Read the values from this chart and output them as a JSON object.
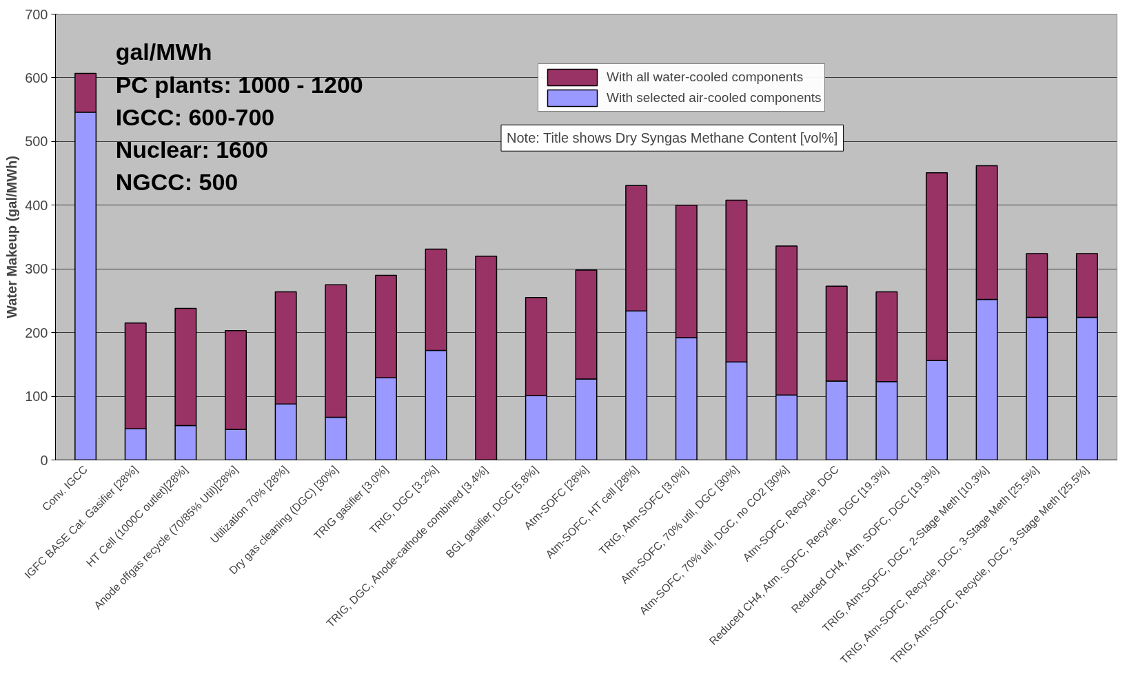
{
  "chart_data": {
    "type": "bar",
    "stacked": true,
    "ylabel": "Water Makeup (gal/MWh)",
    "categories": [
      "Conv. IGCC",
      "IGFC BASE Cat. Gasifier [28%]",
      "HT Cell (1000C outlet)[28%]",
      "Anode offgas recycle (70/85% Util)[28%]",
      "Utilization 70% [28%]",
      "Dry gas cleaning (DGC) [30%]",
      "TRIG gasifier [3.0%]",
      "TRIG, DGC [3.2%]",
      "TRIG, DGC, Anode-cathode combined [3.4%]",
      "BGL gasifier, DGC [5.8%]",
      "Atm-SOFC [28%]",
      "Atm-SOFC, HT cell [28%]",
      "TRIG, Atm-SOFC [3.0%]",
      "Atm-SOFC, 70% util, DGC [30%]",
      "Atm-SOFC, 70% util, DGC, no CO2 [30%]",
      "Atm-SOFC, Recycle, DGC",
      "Reduced CH4, Atm. SOFC, Recycle, DGC [19.3%]",
      "Reduced CH4, Atm. SOFC, DGC [19.3%]",
      "TRIG, Atm-SOFC, DGC, 2-Stage Meth [10.3%]",
      "TRIG, Atm-SOFC, Recycle, DGC, 3-Stage Meth [25.5%]",
      "TRIG, Atm-SOFC, Recycle, DGC, 3-Stage Meth [25.5%]"
    ],
    "series": [
      {
        "name": "With selected air-cooled components",
        "color": "#9999ff",
        "values": [
          546,
          49,
          54,
          48,
          88,
          67,
          129,
          172,
          0,
          101,
          127,
          234,
          192,
          154,
          102,
          124,
          123,
          156,
          252,
          224,
          224
        ]
      },
      {
        "name": "With all water-cooled components",
        "color": "#993366",
        "values": [
          61,
          166,
          184,
          155,
          176,
          208,
          161,
          159,
          320,
          154,
          171,
          197,
          208,
          254,
          234,
          149,
          141,
          295,
          210,
          100,
          100
        ]
      }
    ],
    "ylim": [
      0,
      700
    ],
    "yticks": [
      0,
      100,
      200,
      300,
      400,
      500,
      600,
      700
    ],
    "grid": "y",
    "legend": "top right",
    "annotations": [
      "gal/MWh",
      "PC plants: 1000 - 1200",
      "IGCC: 600-700",
      "Nuclear: 1600",
      "NGCC: 500",
      "Note: Title shows Dry Syngas Methane Content [vol%]"
    ]
  }
}
